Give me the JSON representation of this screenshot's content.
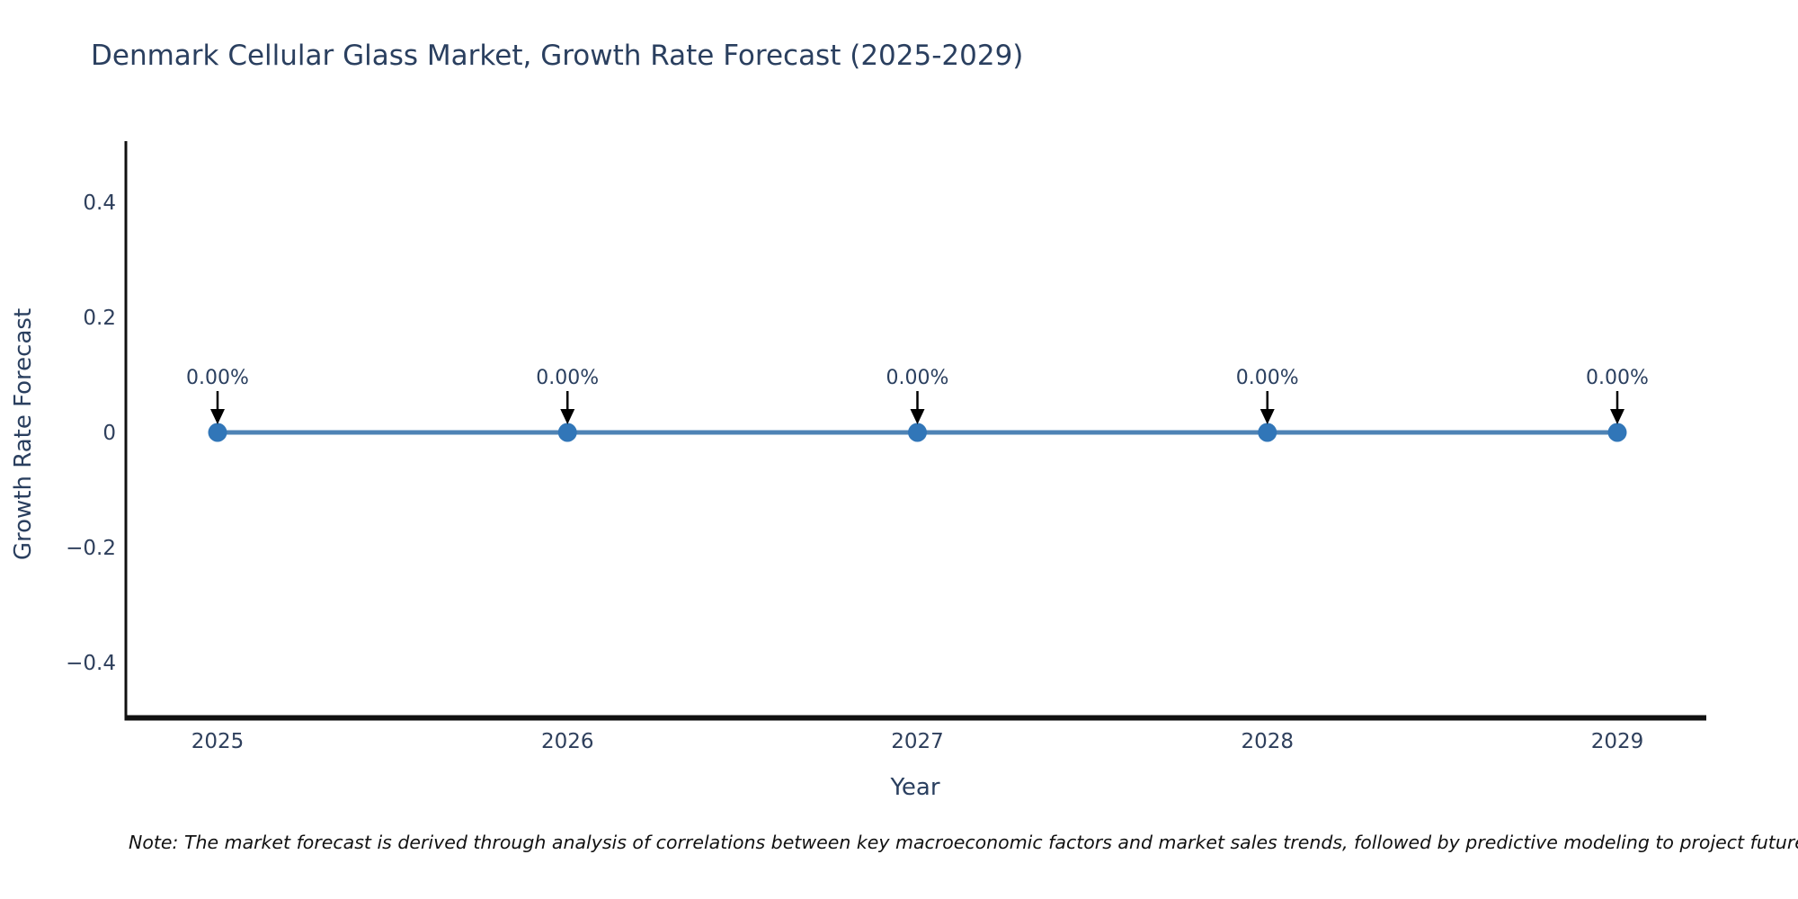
{
  "header": {
    "title": "Denmark Cellular Glass Market, Growth Rate Forecast (2025-2029)"
  },
  "chart_data": {
    "type": "line",
    "title": "Denmark Cellular Glass Market, Growth Rate Forecast (2025-2029)",
    "xlabel": "Year",
    "ylabel": "Growth Rate Forecast",
    "x": [
      2025,
      2026,
      2027,
      2028,
      2029
    ],
    "y": [
      0,
      0,
      0,
      0,
      0
    ],
    "point_labels": [
      "0.00%",
      "0.00%",
      "0.00%",
      "0.00%",
      "0.00%"
    ],
    "xticks": [
      "2025",
      "2026",
      "2027",
      "2028",
      "2029"
    ],
    "yticks": [
      {
        "value": 0.4,
        "label": "0.4"
      },
      {
        "value": 0.2,
        "label": "0.2"
      },
      {
        "value": 0,
        "label": "0"
      },
      {
        "value": -0.2,
        "label": "−0.2"
      },
      {
        "value": -0.4,
        "label": "−0.4"
      }
    ],
    "ylim": [
      -0.5,
      0.5
    ],
    "grid": false,
    "legend_position": "none",
    "colors": {
      "line": "#4e83b5",
      "marker": "#3176b8",
      "arrow": "#000000",
      "text": "#2a3f5f",
      "axis": "#111111"
    }
  },
  "footnote": {
    "text": "Note: The market forecast is derived through analysis of correlations between key macroeconomic factors and market sales trends, followed by predictive modeling to project future sa"
  }
}
